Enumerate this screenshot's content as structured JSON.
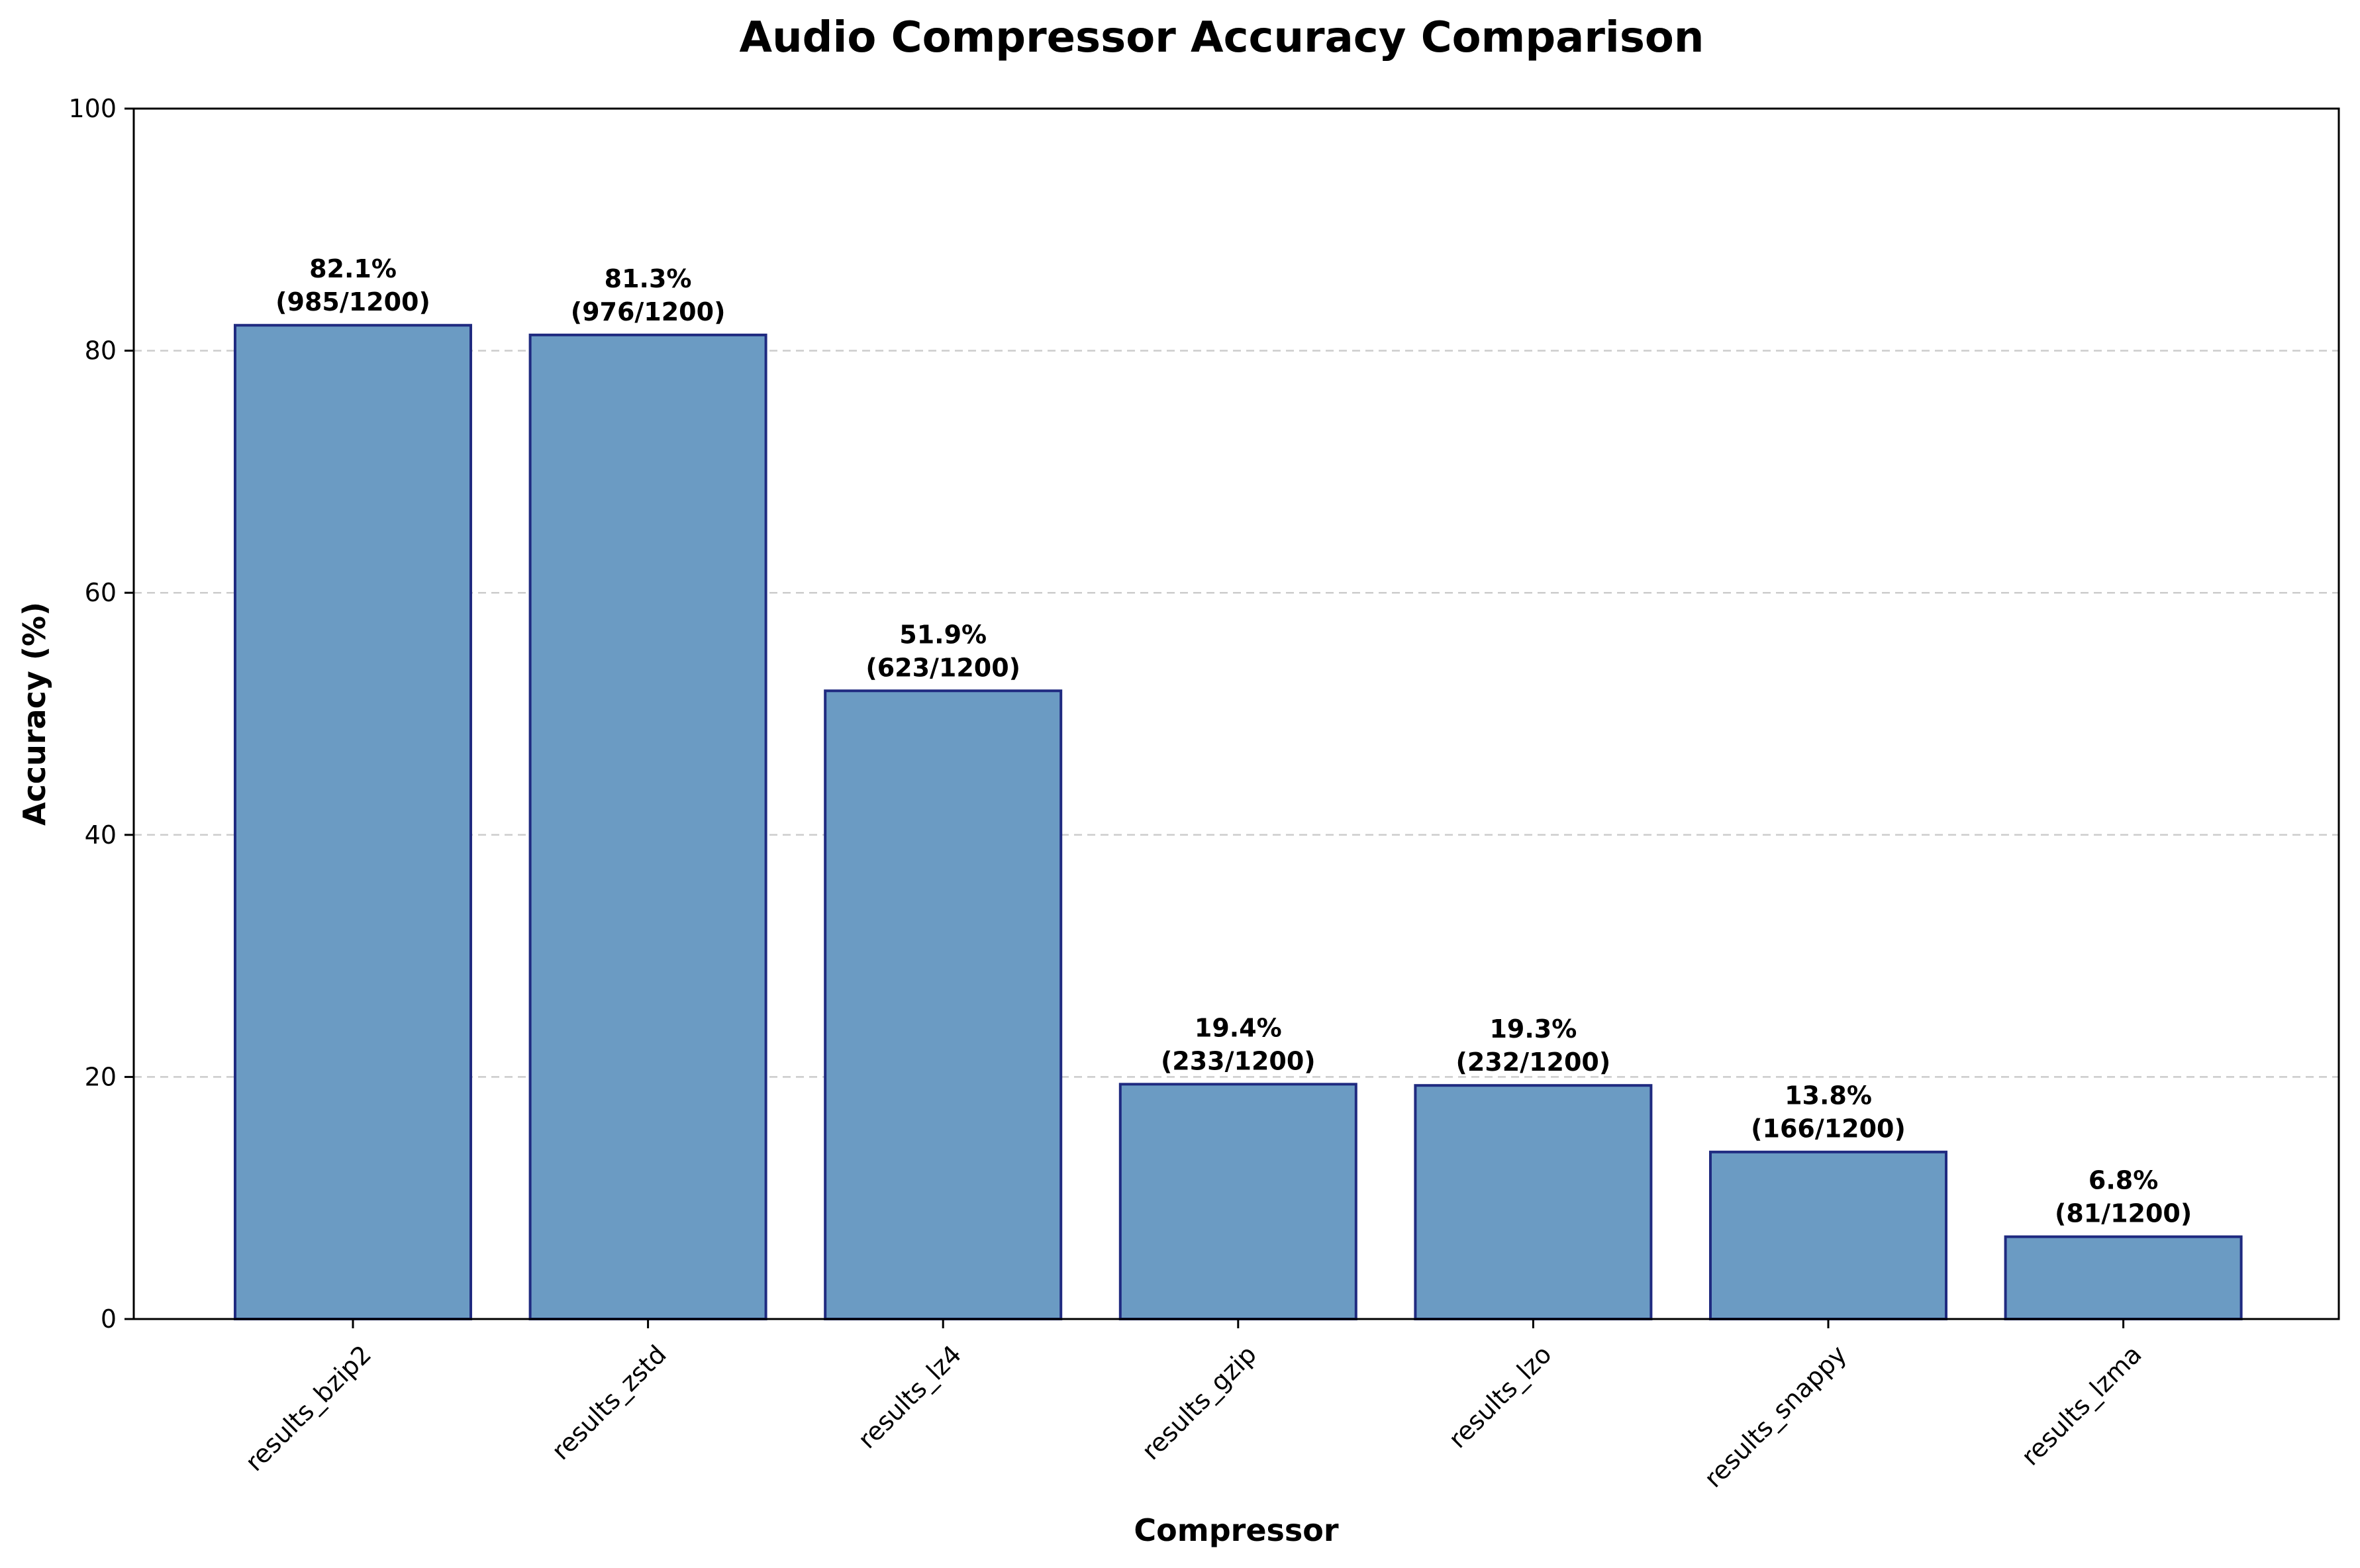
{
  "chart_data": {
    "type": "bar",
    "title": "Audio Compressor Accuracy Comparison",
    "xlabel": "Compressor",
    "ylabel": "Accuracy (%)",
    "ylim": [
      0,
      100
    ],
    "yticks": [
      0,
      20,
      40,
      60,
      80,
      100
    ],
    "grid": "y-dashed",
    "categories": [
      "results_bzip2",
      "results_zstd",
      "results_lz4",
      "results_gzip",
      "results_lzo",
      "results_snappy",
      "results_lzma"
    ],
    "values": [
      82.1,
      81.3,
      51.9,
      19.4,
      19.3,
      13.8,
      6.8
    ],
    "data_labels": [
      [
        "82.1%",
        "(985/1200)"
      ],
      [
        "81.3%",
        "(976/1200)"
      ],
      [
        "51.9%",
        "(623/1200)"
      ],
      [
        "19.4%",
        "(233/1200)"
      ],
      [
        "19.3%",
        "(232/1200)"
      ],
      [
        "13.8%",
        "(166/1200)"
      ],
      [
        "6.8%",
        "(81/1200)"
      ]
    ],
    "colors": {
      "bar_fill": "#6b9bc3",
      "bar_edge": "#1f2a80",
      "grid": "#cccccc",
      "axis": "#000000"
    }
  }
}
